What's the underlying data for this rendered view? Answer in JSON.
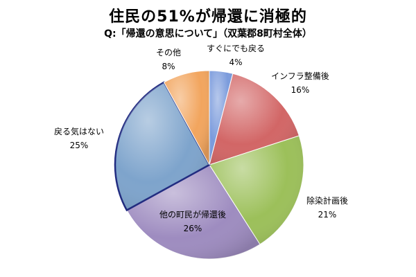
{
  "chart_data": {
    "type": "pie",
    "title": "住民の51%が帰還に消極的",
    "subtitle": "Q:「帰還の意思について」（双葉郡8町村全体）",
    "slices": [
      {
        "label": "すぐにでも戻る",
        "value": 4,
        "value_label": "4%",
        "color": "#7b9bdc"
      },
      {
        "label": "インフラ整備後",
        "value": 16,
        "value_label": "16%",
        "color": "#d26666"
      },
      {
        "label": "除染計画後",
        "value": 21,
        "value_label": "21%",
        "color": "#9cc05a"
      },
      {
        "label": "他の町民が帰還後",
        "value": 26,
        "value_label": "26%",
        "color": "#9e8cc0"
      },
      {
        "label": "戻る気はない",
        "value": 25,
        "value_label": "25%",
        "color": "#7ea4cc"
      },
      {
        "label": "その他",
        "value": 8,
        "value_label": "8%",
        "color": "#f2a55e"
      }
    ],
    "start": "12 o'clock",
    "direction": "clockwise",
    "highlight_slice": "戻る気はない",
    "legend": "none"
  }
}
